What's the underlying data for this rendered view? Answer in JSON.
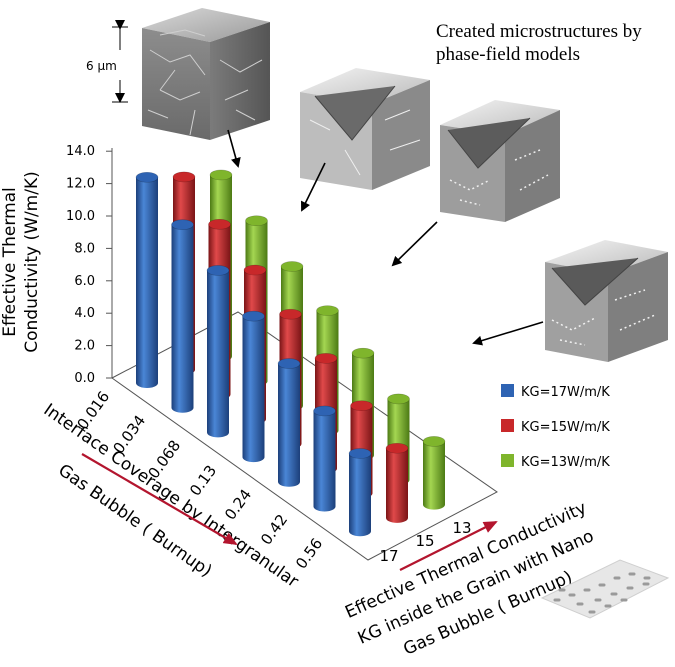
{
  "colors": {
    "kg17": "#2e63b3",
    "kg15": "#c8282a",
    "kg13": "#7fb52c",
    "arrow_red": "#b3152e"
  },
  "annotations": {
    "created_microstructures": [
      "Created microstructures by",
      "phase-field models"
    ],
    "scale_label": "6 µm"
  },
  "legend": [
    {
      "label": "KG=17W/m/K",
      "color": "#2e63b3"
    },
    {
      "label": "KG=15W/m/K",
      "color": "#c8282a"
    },
    {
      "label": "KG=13W/m/K",
      "color": "#7fb52c"
    }
  ],
  "axis_titles": {
    "y": [
      "Effective Thermal",
      "Conductivity (W/m/K)"
    ],
    "x": [
      "Interface Coverage by Intergranular",
      "Gas Bubble ( Burnup)"
    ],
    "z": [
      "Effective Thermal Conductivity",
      "KG inside the Grain with Nano",
      "Gas Bubble ( Burnup)"
    ]
  },
  "chart_data": {
    "type": "bar",
    "bar_style": "3d-cylinder",
    "ylabel": "Effective Thermal Conductivity (W/m/K)",
    "xlabel": "Interface Coverage by Intergranular Gas Bubble ( Burnup)",
    "zlabel": "Effective Thermal Conductivity KG inside the Grain with Nano Gas Bubble ( Burnup)",
    "y_ticks": [
      "0.0",
      "2.0",
      "4.0",
      "6.0",
      "8.0",
      "10.0",
      "12.0",
      "14.0"
    ],
    "ylim": [
      0,
      14
    ],
    "categories": [
      "0.016",
      "0.034",
      "0.068",
      "0.13",
      "0.24",
      "0.42",
      "0.56"
    ],
    "depth_categories": [
      "17",
      "15",
      "13"
    ],
    "series": [
      {
        "name": "KG=17W/m/K",
        "values": [
          12.7,
          11.3,
          10.0,
          8.7,
          7.3,
          5.9,
          4.8
        ]
      },
      {
        "name": "KG=15W/m/K",
        "values": [
          11.9,
          10.5,
          9.2,
          8.0,
          6.8,
          5.4,
          4.3
        ]
      },
      {
        "name": "KG=13W/m/K",
        "values": [
          11.2,
          9.9,
          8.6,
          7.4,
          6.3,
          5.0,
          3.9
        ]
      }
    ]
  }
}
